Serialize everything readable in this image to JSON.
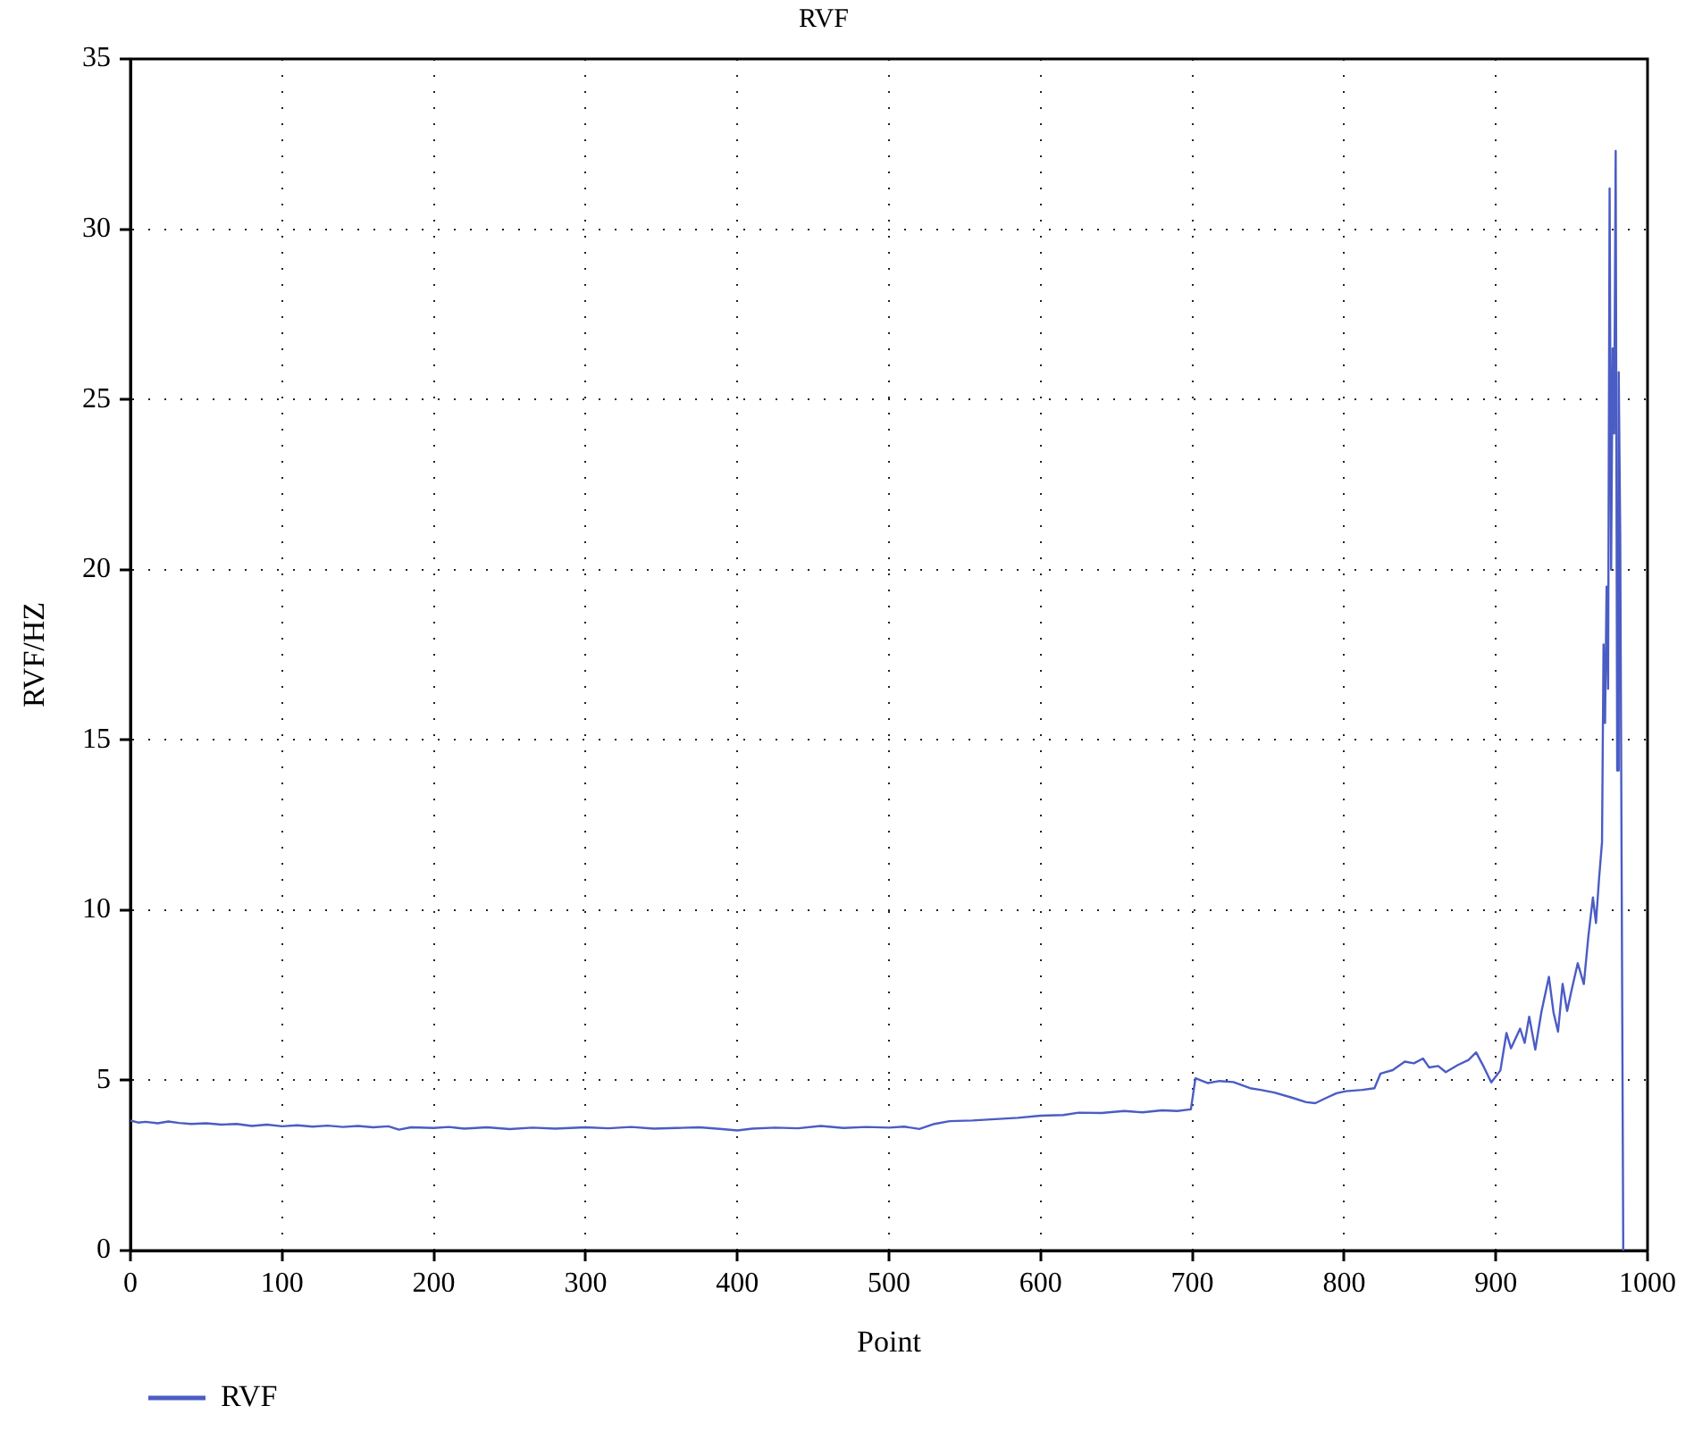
{
  "chart_data": {
    "type": "line",
    "title": "RVF",
    "xlabel": "Point",
    "ylabel": "RVF/HZ",
    "x": [
      0,
      5,
      10,
      18,
      25,
      32,
      40,
      50,
      60,
      70,
      80,
      90,
      100,
      110,
      120,
      130,
      140,
      150,
      160,
      170,
      177,
      185,
      200,
      210,
      220,
      235,
      250,
      265,
      280,
      300,
      315,
      330,
      345,
      360,
      375,
      390,
      400,
      410,
      425,
      440,
      455,
      470,
      485,
      500,
      510,
      520,
      530,
      540,
      555,
      570,
      585,
      600,
      615,
      625,
      640,
      655,
      667,
      680,
      690,
      699,
      702,
      710,
      718,
      727,
      738,
      745,
      754,
      765,
      775,
      781,
      788,
      795,
      801,
      812,
      820,
      824,
      832,
      840,
      846,
      852,
      856,
      862,
      867,
      875,
      882,
      887,
      892,
      897,
      903,
      907,
      910,
      916,
      919,
      922,
      926,
      930,
      935,
      938,
      941,
      944,
      947,
      950,
      954,
      958,
      961,
      964,
      966,
      968,
      970,
      971,
      972,
      973,
      974,
      975,
      976,
      977,
      978,
      979,
      980,
      981,
      982,
      983,
      984
    ],
    "series": [
      {
        "name": "RVF",
        "color": "#4b5cc4",
        "values": [
          3.82,
          3.76,
          3.78,
          3.74,
          3.79,
          3.75,
          3.72,
          3.74,
          3.7,
          3.72,
          3.66,
          3.7,
          3.65,
          3.68,
          3.64,
          3.67,
          3.63,
          3.66,
          3.62,
          3.65,
          3.55,
          3.62,
          3.6,
          3.63,
          3.58,
          3.62,
          3.57,
          3.61,
          3.58,
          3.62,
          3.59,
          3.63,
          3.58,
          3.6,
          3.62,
          3.57,
          3.53,
          3.58,
          3.61,
          3.59,
          3.66,
          3.6,
          3.63,
          3.61,
          3.64,
          3.57,
          3.72,
          3.8,
          3.82,
          3.86,
          3.9,
          3.96,
          3.98,
          4.05,
          4.04,
          4.1,
          4.06,
          4.12,
          4.1,
          4.15,
          5.06,
          4.92,
          4.98,
          4.95,
          4.77,
          4.72,
          4.64,
          4.5,
          4.36,
          4.33,
          4.48,
          4.62,
          4.68,
          4.72,
          4.77,
          5.2,
          5.3,
          5.55,
          5.5,
          5.64,
          5.38,
          5.42,
          5.24,
          5.45,
          5.6,
          5.82,
          5.4,
          4.94,
          5.29,
          6.39,
          5.94,
          6.52,
          6.1,
          6.87,
          5.9,
          7.0,
          8.04,
          7.0,
          6.43,
          7.83,
          7.04,
          7.66,
          8.44,
          7.83,
          9.23,
          10.37,
          9.62,
          10.9,
          12.0,
          17.8,
          15.5,
          19.5,
          16.5,
          31.2,
          20.0,
          26.5,
          24.0,
          32.3,
          14.1,
          25.8,
          21.0,
          10.4,
          0
        ]
      }
    ],
    "xlim": [
      0,
      1000
    ],
    "xticks": [
      0,
      100,
      200,
      300,
      400,
      500,
      600,
      700,
      800,
      900,
      1000
    ],
    "ylim": [
      0,
      35
    ],
    "yticks": [
      0,
      5,
      10,
      15,
      20,
      25,
      30,
      35
    ],
    "grid": true,
    "legend": "bottom left",
    "marker": "none",
    "line_style": "solid"
  }
}
